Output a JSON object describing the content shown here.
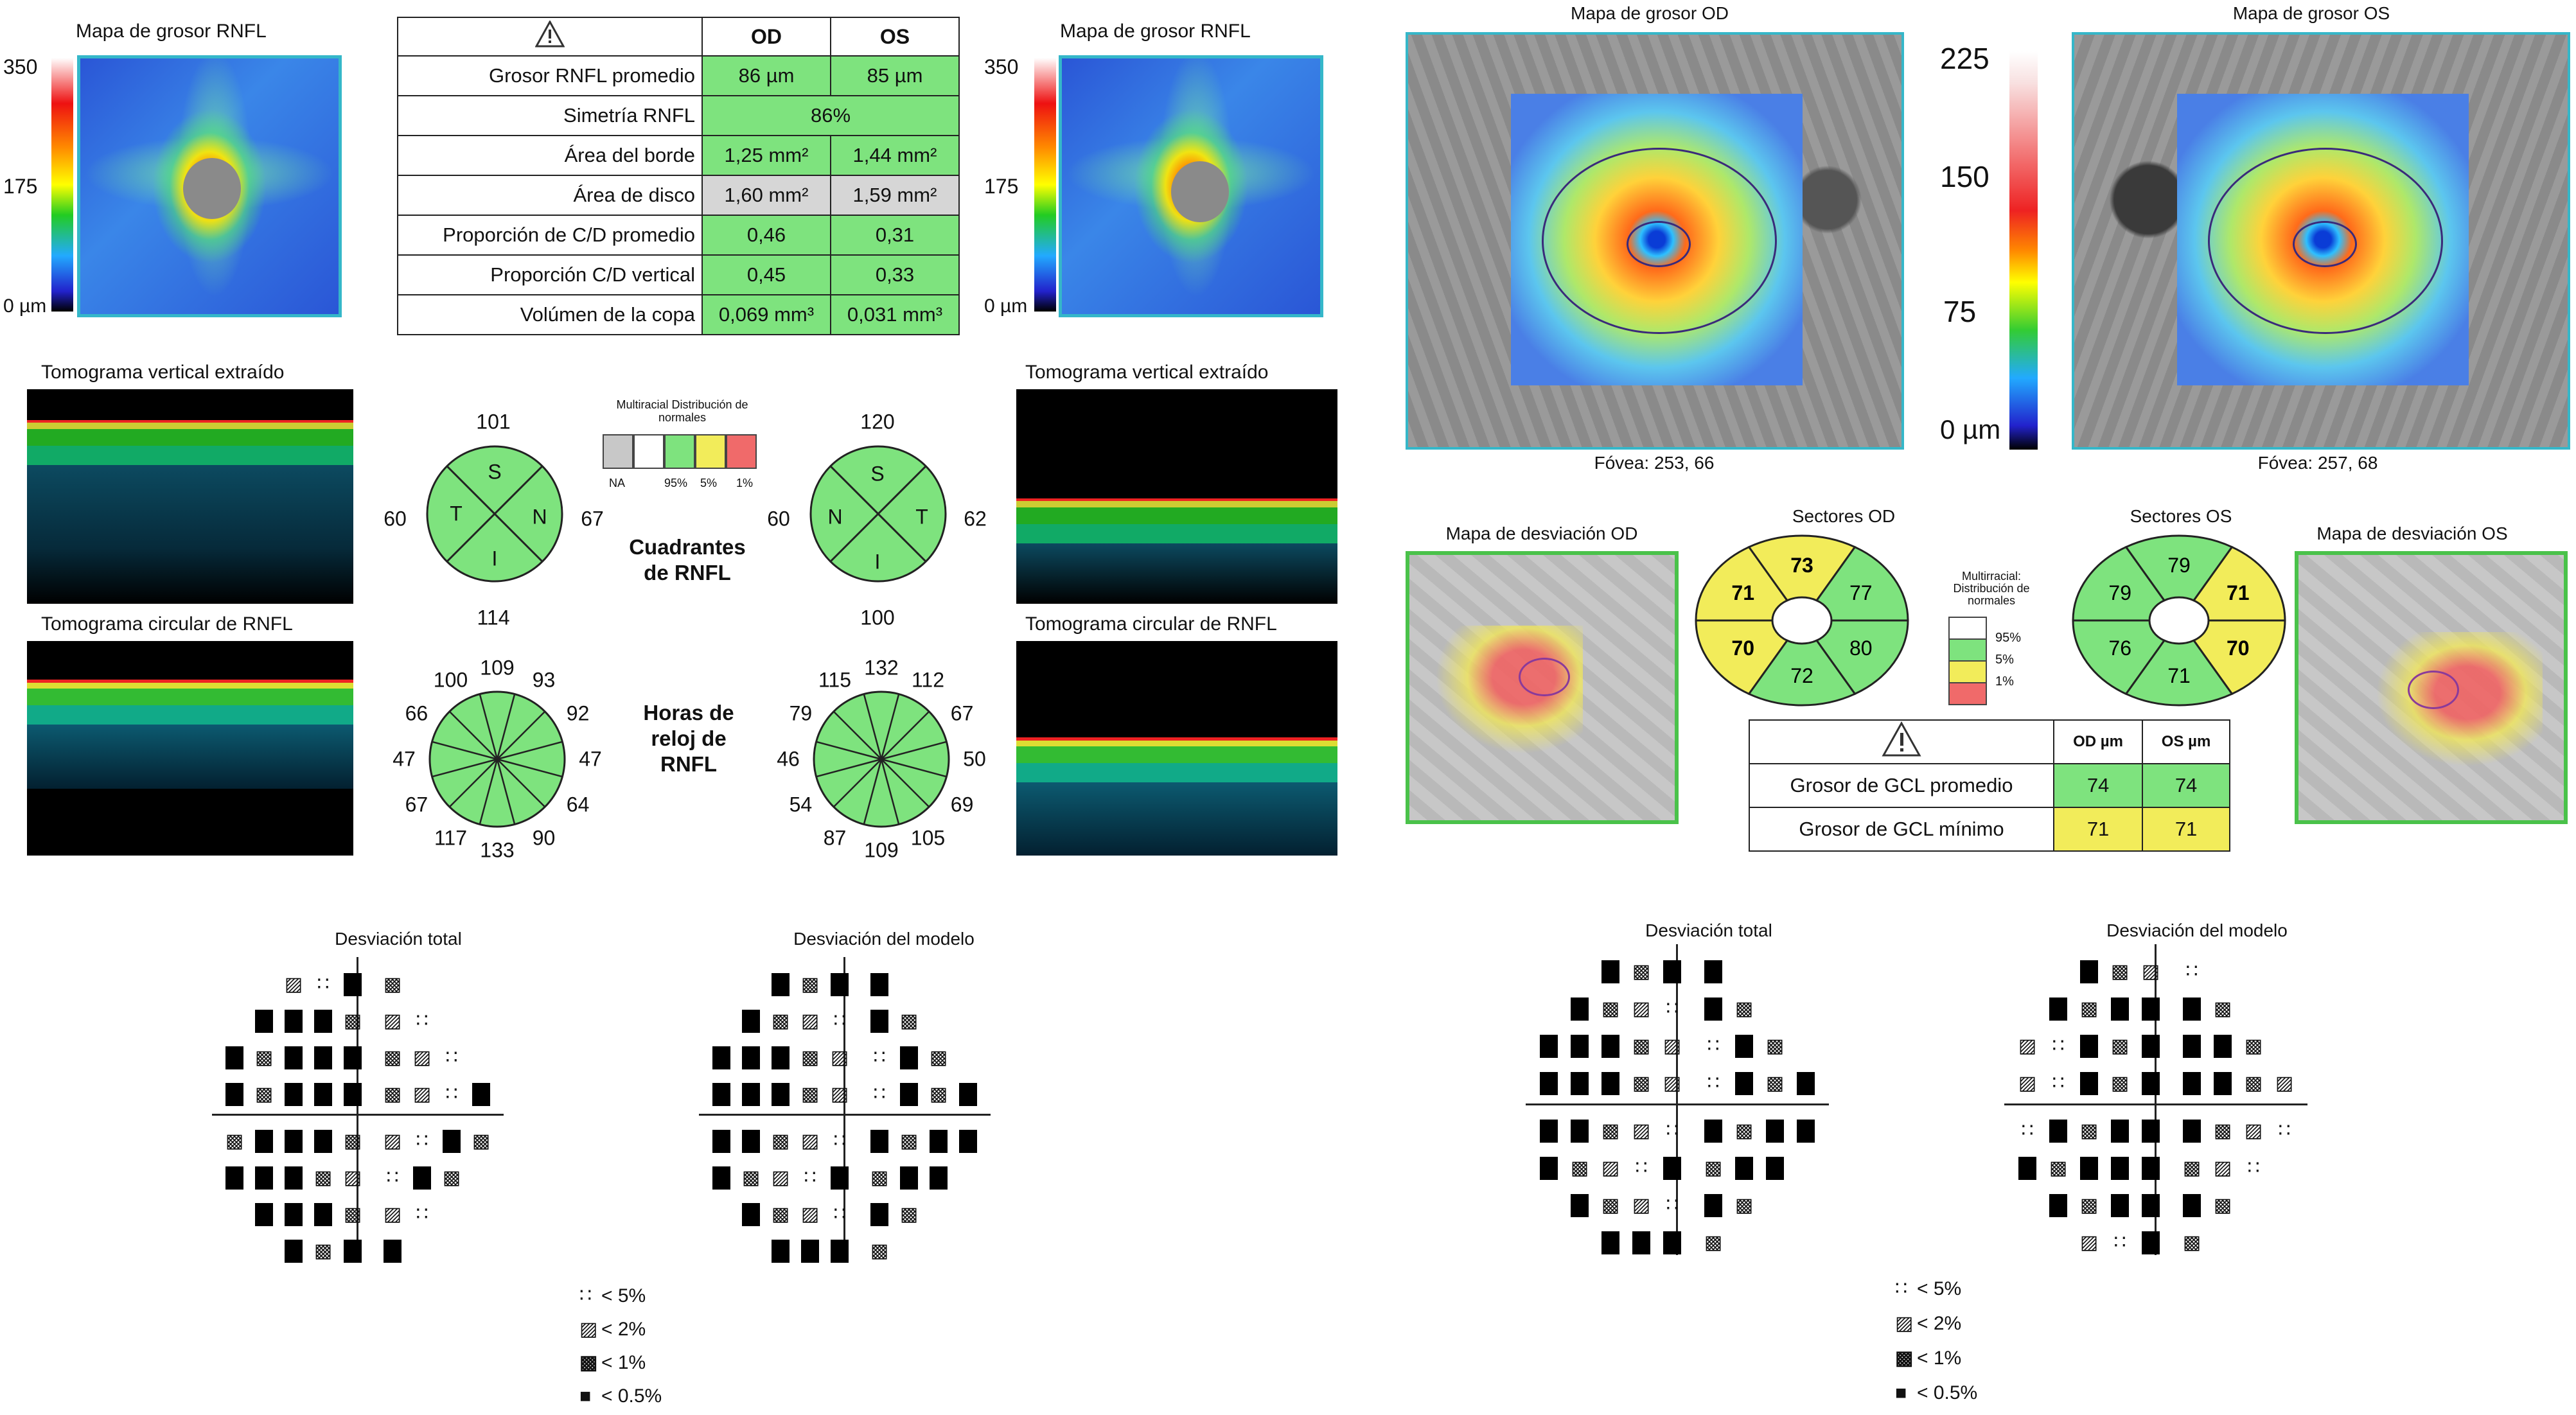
{
  "rnfl": {
    "od_map_title": "Mapa de grosor RNFL",
    "os_map_title": "Mapa de grosor RNFL",
    "scale_max": "350",
    "scale_mid": "175",
    "scale_min": "0 µm",
    "warning_icon": "warning-triangle-icon",
    "table": {
      "headers": [
        "OD",
        "OS"
      ],
      "rows": [
        {
          "label": "Grosor RNFL promedio",
          "od": "86 µm",
          "os": "85 µm"
        },
        {
          "label": "Simetría RNFL",
          "merged": "86%"
        },
        {
          "label": "Área del borde",
          "od": "1,25 mm²",
          "os": "1,44 mm²"
        },
        {
          "label": "Área de disco",
          "od": "1,60 mm²",
          "os": "1,59 mm²"
        },
        {
          "label": "Proporción de C/D promedio",
          "od": "0,46",
          "os": "0,31"
        },
        {
          "label": "Proporción C/D vertical",
          "od": "0,45",
          "os": "0,33"
        },
        {
          "label": "Volúmen de la copa",
          "od": "0,069 mm³",
          "os": "0,031 mm³"
        }
      ]
    },
    "tomo_vertical_title": "Tomograma vertical extraído",
    "tomo_circular_title": "Tomograma circular de RNFL",
    "quadrants_title": "Cuadrantes de RNFL",
    "clock_title": "Horas de reloj de RNFL",
    "legend_title": "Multiracial Distribución de normales",
    "legend_labels": [
      "NA",
      "95%",
      "5%",
      "1%"
    ],
    "od_quadrants": {
      "top": "101",
      "left": "60",
      "right": "67",
      "bottom": "114",
      "letters": [
        "S",
        "T",
        "N",
        "I"
      ]
    },
    "os_quadrants": {
      "top": "120",
      "left": "60",
      "right": "62",
      "bottom": "100",
      "letters": [
        "S",
        "N",
        "T",
        "I"
      ]
    },
    "od_clock": [
      "109",
      "93",
      "92",
      "47",
      "64",
      "90",
      "133",
      "117",
      "67",
      "47",
      "66",
      "100"
    ],
    "os_clock": [
      "132",
      "112",
      "67",
      "50",
      "69",
      "105",
      "109",
      "87",
      "54",
      "46",
      "79",
      "115"
    ]
  },
  "gcl": {
    "od_map_title": "Mapa de grosor OD",
    "os_map_title": "Mapa de grosor OS",
    "scale": [
      "225",
      "150",
      "75",
      "0 µm"
    ],
    "od_fovea": "Fóvea: 253, 66",
    "os_fovea": "Fóvea: 257, 68",
    "od_dev_title": "Mapa de desviación OD",
    "os_dev_title": "Mapa de desviación OS",
    "od_sectors_title": "Sectores OD",
    "os_sectors_title": "Sectores OS",
    "od_sectors": [
      "73",
      "77",
      "80",
      "72",
      "70",
      "71"
    ],
    "os_sectors": [
      "79",
      "71",
      "70",
      "71",
      "76",
      "79"
    ],
    "legend_title": "Multirracial: Distribución de normales",
    "legend_labels": [
      "95%",
      "5%",
      "1%"
    ],
    "table": {
      "headers": [
        "OD µm",
        "OS µm"
      ],
      "rows": [
        {
          "label": "Grosor de GCL promedio",
          "od": "74",
          "os": "74"
        },
        {
          "label": "Grosor de GCL mínimo",
          "od": "71",
          "os": "71"
        }
      ]
    },
    "colors": {
      "green": "#7ee37e",
      "yellow": "#f2ec5a",
      "red": "#f06a6a",
      "frame": "#35b7c9"
    }
  },
  "fields": {
    "left_total_title": "Desviación total",
    "left_pattern_title": "Desviación del modelo",
    "right_total_title": "Desviación total",
    "right_pattern_title": "Desviación del modelo",
    "legend": [
      "< 5%",
      "< 2%",
      "< 1%",
      "< 0.5%"
    ]
  }
}
